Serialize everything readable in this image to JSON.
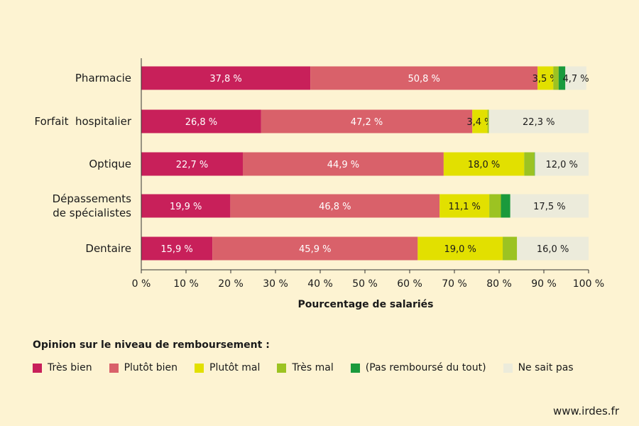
{
  "chart_data": {
    "type": "bar",
    "orientation": "horizontal",
    "stacked": true,
    "categories": [
      [
        "Pharmacie"
      ],
      [
        "Forfait  hospitalier"
      ],
      [
        "Optique"
      ],
      [
        "Dépassements",
        "de spécialistes"
      ],
      [
        "Dentaire"
      ]
    ],
    "series": [
      {
        "name": "Très bien",
        "color": "#c8205a",
        "values": [
          37.8,
          26.8,
          22.7,
          19.9,
          15.9
        ],
        "labels": [
          "37,8 %",
          "26,8 %",
          "22,7 %",
          "19,9 %",
          "15,9 %"
        ],
        "label_color": "#ffffff"
      },
      {
        "name": "Plutôt bien",
        "color": "#d9616a",
        "values": [
          50.8,
          47.2,
          44.9,
          46.8,
          45.9
        ],
        "labels": [
          "50,8 %",
          "47,2 %",
          "44,9 %",
          "46,8 %",
          "45,9 %"
        ],
        "label_color": "#ffffff"
      },
      {
        "name": "Plutôt mal",
        "color": "#e2e000",
        "values": [
          3.5,
          3.4,
          18.0,
          11.1,
          19.0
        ],
        "labels": [
          "3,5 %",
          "3,4 %",
          "18,0 %",
          "11,1 %",
          "19,0 %"
        ],
        "label_color": "#1a1a1a"
      },
      {
        "name": "Très mal",
        "color": "#9cc322",
        "values": [
          1.2,
          0.3,
          2.3,
          2.6,
          3.2
        ],
        "labels": [
          "",
          "",
          "",
          "",
          ""
        ],
        "label_color": "#1a1a1a"
      },
      {
        "name": "(Pas remboursé du tout)",
        "color": "#1a9a3c",
        "values": [
          1.5,
          0.0,
          0.1,
          2.1,
          0.0
        ],
        "labels": [
          "",
          "",
          "",
          "",
          ""
        ],
        "label_color": "#1a1a1a"
      },
      {
        "name": "Ne sait pas",
        "color": "#ecebdb",
        "values": [
          4.7,
          22.3,
          12.0,
          17.5,
          16.0
        ],
        "labels": [
          "4,7 %",
          "22,3 %",
          "12,0 %",
          "17,5 %",
          "16,0 %"
        ],
        "label_color": "#1a1a1a"
      }
    ],
    "xlim": [
      0,
      100
    ],
    "xticks": [
      "0 %",
      "10 %",
      "20 %",
      "30 %",
      "40 %",
      "50 %",
      "60 %",
      "70 %",
      "80 %",
      "90 %",
      "100 %"
    ],
    "xlabel": "Pourcentage de salariés",
    "ylabel": "",
    "grid": false,
    "legend_title": "Opinion sur le niveau de remboursement :",
    "legend_position": "bottom"
  },
  "source": "www.irdes.fr"
}
